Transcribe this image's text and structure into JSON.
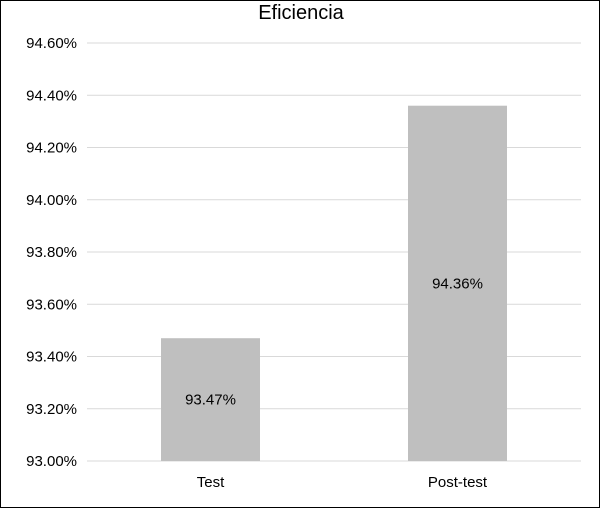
{
  "chart_data": {
    "type": "bar",
    "title": "Eficiencia",
    "categories": [
      "Test",
      "Post-test"
    ],
    "values": [
      93.47,
      94.36
    ],
    "value_labels": [
      "93.47%",
      "94.36%"
    ],
    "ylim": [
      93.0,
      94.6
    ],
    "yticks": [
      93.0,
      93.2,
      93.4,
      93.6,
      93.8,
      94.0,
      94.2,
      94.4,
      94.6
    ],
    "ytick_labels": [
      "93.00%",
      "93.20%",
      "93.40%",
      "93.60%",
      "93.80%",
      "94.00%",
      "94.20%",
      "94.40%",
      "94.60%"
    ],
    "grid": true,
    "legend": "none",
    "colors": {
      "bar": "#bfbfbf",
      "grid": "#d9d9d9",
      "text": "#000000"
    }
  }
}
